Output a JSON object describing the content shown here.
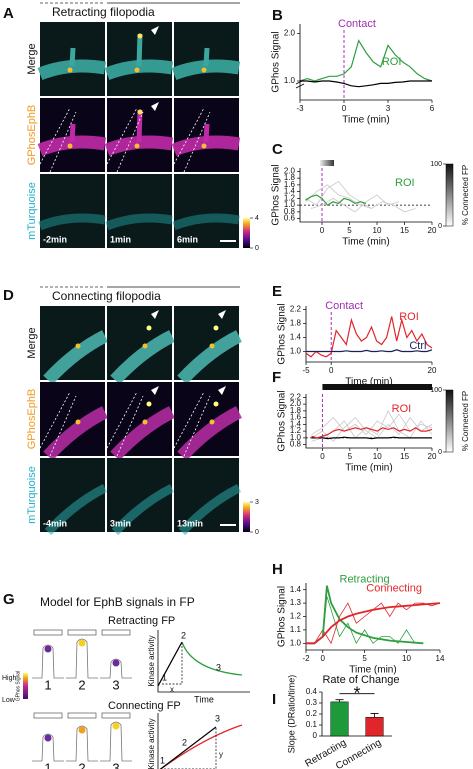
{
  "panel_labels": [
    "A",
    "B",
    "C",
    "D",
    "E",
    "F",
    "G",
    "H",
    "I"
  ],
  "image_panels": [
    {
      "title": "Retracting filopodia",
      "rows": [
        "Merge",
        "GPhosEphB",
        "mTurquoise"
      ],
      "times": [
        "-2min",
        "1min",
        "6min"
      ],
      "colorbar_ticks": [
        4,
        0
      ]
    },
    {
      "title": "Connecting filopodia",
      "rows": [
        "Merge",
        "GPhosEphB",
        "mTurquoise"
      ],
      "times": [
        "-4min",
        "3min",
        "13min"
      ],
      "colorbar_ticks": [
        3,
        0
      ]
    }
  ],
  "diagram": {
    "title": "Model for EphB signals in FP",
    "legend_high": "High",
    "legend_low": "Low",
    "legend_label": "GPhos Signal",
    "models": [
      {
        "title": "Retracting FP",
        "stages": [
          "1",
          "2",
          "3"
        ],
        "y_label": "Kinase activity",
        "x_label": "Time",
        "curve_labels": [
          "1",
          "2",
          "3"
        ],
        "marks": [
          "x"
        ]
      },
      {
        "title": "Connecting FP",
        "stages": [
          "1",
          "2",
          "3"
        ],
        "y_label": "Kinase activity",
        "x_label": "Time",
        "curve_labels": [
          "1",
          "2",
          "3"
        ],
        "marks": [
          "x",
          "y"
        ]
      }
    ]
  },
  "chart_data": [
    {
      "type": "line",
      "y_label": "GPhos Signal",
      "x_label": "Time (min)",
      "xlim": [
        -3,
        6
      ],
      "xticks": [
        -3,
        0,
        3,
        6
      ],
      "ylim": [
        0.6,
        2.2
      ],
      "yticks": [
        {
          "value": 1.0,
          "label": "1.0"
        },
        {
          "value": 2.0,
          "label": "2.0"
        }
      ],
      "axis_break": true,
      "annotations": [
        {
          "text": "Contact",
          "x": 0
        }
      ],
      "series": [
        {
          "name": "ROI",
          "color": "#2e9e3e",
          "x": [
            -3,
            -2.5,
            -2,
            -1.5,
            -1,
            -0.5,
            0,
            0.5,
            1,
            1.5,
            2,
            2.5,
            3,
            3.5,
            4,
            4.5,
            5,
            5.5,
            6
          ],
          "values": [
            1.0,
            1.05,
            1.0,
            1.05,
            1.1,
            1.1,
            1.15,
            1.3,
            1.85,
            1.6,
            1.4,
            1.3,
            1.75,
            1.55,
            1.4,
            1.3,
            1.15,
            1.05,
            1.0
          ]
        },
        {
          "color": "#000000",
          "x": [
            -3,
            -2.5,
            -2,
            -1.5,
            -1,
            -0.5,
            0,
            0.5,
            1,
            1.5,
            2,
            2.5,
            3,
            3.5,
            4,
            4.5,
            5,
            5.5,
            6
          ],
          "values": [
            1.0,
            1.0,
            0.98,
            1.0,
            1.0,
            0.98,
            0.95,
            0.9,
            0.88,
            0.9,
            0.92,
            0.95,
            0.95,
            0.97,
            0.98,
            1.0,
            1.0,
            1.0,
            1.0
          ]
        }
      ]
    },
    {
      "type": "line",
      "y_label": "GPhos Signal",
      "x_label": "Time (min)",
      "xlim": [
        -4,
        20
      ],
      "xticks": [
        0,
        5,
        10,
        15,
        20
      ],
      "ylim": [
        0.5,
        2.1
      ],
      "yticks": [
        0.6,
        0.8,
        {
          "value": 1.0,
          "label": "1.0"
        },
        1.2,
        1.4,
        1.6,
        1.8,
        {
          "value": 2.0,
          "label": "2.0"
        }
      ],
      "contact_x": 0,
      "reference_y": 1,
      "colorbar": {
        "label": "% Connected FP",
        "ticks": [
          0,
          100
        ]
      },
      "series": [
        {
          "color": "#c8c8c8",
          "x": [
            -3,
            -1,
            1,
            3,
            5,
            7,
            9,
            11,
            13,
            15,
            17
          ],
          "values": [
            1.1,
            1.4,
            1.6,
            1.3,
            1.2,
            1.0,
            0.9,
            1.1,
            1.0,
            0.8,
            0.9
          ]
        },
        {
          "color": "#c8c8c8",
          "x": [
            -3,
            -1,
            1,
            3,
            5,
            7,
            9
          ],
          "values": [
            1.2,
            1.0,
            1.5,
            1.7,
            1.3,
            1.1,
            0.9
          ]
        },
        {
          "color": "#c8c8c8",
          "x": [
            -2,
            0,
            2,
            4,
            6,
            8,
            10,
            12,
            14
          ],
          "values": [
            0.9,
            1.0,
            1.2,
            1.0,
            0.8,
            1.1,
            1.3,
            1.0,
            1.1
          ]
        },
        {
          "name": "ROI",
          "color": "#2e9e3e",
          "x": [
            -3,
            -2,
            -1,
            0,
            1,
            2,
            3,
            4,
            5,
            6,
            7,
            8
          ],
          "values": [
            1.15,
            1.25,
            1.3,
            1.2,
            1.0,
            1.1,
            1.05,
            1.2,
            1.15,
            1.05,
            1.1,
            1.05
          ]
        }
      ]
    },
    {
      "type": "line",
      "y_label": "GPhos Signal",
      "x_label": "Time (min)",
      "xlim": [
        -5,
        20
      ],
      "xticks": [
        -5,
        0,
        20
      ],
      "ylim": [
        0.7,
        2.3
      ],
      "yticks": [
        {
          "value": 1.0,
          "label": "1.0"
        },
        1.4,
        1.8,
        2.2
      ],
      "annotations": [
        {
          "text": "Contact",
          "x": 0
        }
      ],
      "series": [
        {
          "name": "ROI",
          "color": "#e2262b",
          "x": [
            -5,
            -4,
            -3,
            -2,
            -1,
            0,
            1,
            2,
            3,
            4,
            5,
            6,
            7,
            8,
            9,
            10,
            11,
            12,
            13,
            14,
            15,
            16,
            17,
            18,
            19,
            20
          ],
          "values": [
            0.95,
            0.85,
            1.0,
            0.9,
            0.85,
            0.95,
            1.6,
            1.4,
            1.2,
            1.9,
            1.5,
            1.3,
            1.4,
            1.7,
            1.3,
            1.2,
            1.4,
            2.0,
            1.3,
            1.9,
            1.4,
            1.6,
            1.3,
            1.5,
            1.2,
            1.1
          ]
        },
        {
          "name": "Ctrl",
          "color": "#1a1f5c",
          "x": [
            -5,
            -4,
            -3,
            -2,
            -1,
            0,
            1,
            2,
            3,
            4,
            5,
            6,
            7,
            8,
            9,
            10,
            11,
            12,
            13,
            14,
            15,
            16,
            17,
            18,
            19,
            20
          ],
          "values": [
            1.0,
            1.0,
            1.0,
            1.0,
            1.0,
            1.0,
            1.0,
            1.0,
            1.02,
            1.0,
            1.0,
            1.0,
            1.03,
            1.0,
            1.0,
            1.02,
            1.0,
            1.0,
            1.05,
            1.0,
            1.0,
            1.0,
            1.02,
            1.0,
            1.0,
            1.05
          ]
        }
      ]
    },
    {
      "type": "line",
      "y_label": "GPhos Signal",
      "x_label": "Time (min)",
      "xlim": [
        -3,
        20
      ],
      "xticks": [
        0,
        5,
        10,
        15,
        20
      ],
      "ylim": [
        0.7,
        2.3
      ],
      "yticks": [
        0.8,
        {
          "value": 1.0,
          "label": "1.0"
        },
        1.2,
        1.4,
        1.6,
        1.8,
        {
          "value": 2.0,
          "label": "2.0"
        },
        2.2
      ],
      "contact_x": 0,
      "reference_y": 1,
      "colorbar": {
        "label": "% Connected FP",
        "ticks": [
          0,
          100
        ]
      },
      "series": [
        {
          "color": "#c8c8c8",
          "x": [
            -2,
            0,
            2,
            4,
            6,
            8,
            10,
            12,
            14,
            16,
            18,
            20
          ],
          "values": [
            1.1,
            1.3,
            1.6,
            1.2,
            1.4,
            1.1,
            1.5,
            1.3,
            1.7,
            1.2,
            1.4,
            1.3
          ]
        },
        {
          "color": "#c8c8c8",
          "x": [
            -2,
            0,
            2,
            4,
            6,
            8,
            10,
            12,
            14,
            16,
            18,
            20
          ],
          "values": [
            0.9,
            1.0,
            1.2,
            1.5,
            1.0,
            1.3,
            1.1,
            1.8,
            1.2,
            1.0,
            1.5,
            1.1
          ]
        },
        {
          "color": "#c8c8c8",
          "x": [
            -2,
            0,
            2,
            4,
            6,
            8,
            10,
            12,
            14,
            16,
            18,
            20
          ],
          "values": [
            1.0,
            1.2,
            0.9,
            1.3,
            1.6,
            1.2,
            1.0,
            1.4,
            1.1,
            1.6,
            1.2,
            1.4
          ]
        },
        {
          "color": "#000000",
          "x": [
            -2,
            -1,
            0,
            1,
            2,
            3,
            4,
            5,
            6,
            7,
            8,
            9,
            10,
            11,
            12,
            13,
            14,
            15,
            16,
            17,
            18,
            19,
            20
          ],
          "values": [
            1.0,
            1.0,
            1.0,
            0.98,
            1.0,
            1.0,
            1.02,
            1.0,
            1.0,
            1.0,
            1.0,
            0.98,
            1.0,
            1.0,
            1.0,
            1.02,
            1.0,
            1.0,
            1.0,
            1.0,
            1.0,
            1.0,
            1.0
          ]
        },
        {
          "name": "ROI",
          "color": "#e2262b",
          "x": [
            -2,
            -1,
            0,
            1,
            2,
            3,
            4,
            5,
            6,
            7,
            8,
            9,
            10,
            11,
            12,
            13,
            14,
            15,
            16,
            17,
            18,
            19,
            20
          ],
          "values": [
            1.05,
            1.0,
            1.05,
            1.1,
            1.2,
            1.25,
            1.2,
            1.25,
            1.3,
            1.25,
            1.3,
            1.25,
            1.2,
            1.3,
            1.25,
            1.3,
            1.2,
            1.25,
            1.2,
            1.3,
            1.2,
            1.2,
            1.25
          ]
        }
      ]
    },
    {
      "type": "line",
      "y_label": "GPhos Signal",
      "x_label": "Time (min)",
      "xlim": [
        -2,
        14
      ],
      "xticks": [
        -2,
        0,
        5,
        10,
        14
      ],
      "ylim": [
        0.95,
        1.45
      ],
      "yticks": [
        {
          "value": 1.0,
          "label": "1.0"
        },
        1.1,
        1.2,
        1.3,
        1.4
      ],
      "series": [
        {
          "color": "#2e9e3e",
          "style": "thin",
          "x": [
            -2,
            -1,
            0,
            0.5,
            1,
            2,
            3,
            4,
            5,
            6,
            7,
            8,
            9,
            10,
            11
          ],
          "values": [
            1.0,
            1.0,
            1.05,
            1.35,
            1.25,
            1.05,
            1.15,
            1.0,
            1.1,
            1.0,
            1.05,
            1.05,
            1.0,
            1.1,
            1.0
          ]
        },
        {
          "color": "#e2262b",
          "style": "thin",
          "x": [
            -2,
            -1,
            0,
            1,
            2,
            3,
            4,
            5,
            6,
            7,
            8,
            9,
            10,
            11,
            12,
            13,
            14
          ],
          "values": [
            1.0,
            1.0,
            1.1,
            1.0,
            1.2,
            1.3,
            1.15,
            1.2,
            1.25,
            1.3,
            1.2,
            1.3,
            1.25,
            1.3,
            1.3,
            1.28,
            1.3
          ]
        },
        {
          "name": "Retracting",
          "color": "#2e9e3e",
          "style": "fit",
          "x": [
            -2,
            -1,
            0,
            0.5,
            1,
            2,
            3,
            4,
            6,
            8,
            10,
            12
          ],
          "values": [
            1.0,
            1.0,
            1.05,
            1.43,
            1.3,
            1.18,
            1.12,
            1.08,
            1.04,
            1.02,
            1.01,
            1.0
          ]
        },
        {
          "name": "Connecting",
          "color": "#e2262b",
          "style": "fit",
          "x": [
            -2,
            -1,
            0,
            1,
            2,
            3,
            4,
            6,
            8,
            10,
            12,
            14
          ],
          "values": [
            1.0,
            1.0,
            1.05,
            1.12,
            1.17,
            1.2,
            1.22,
            1.25,
            1.27,
            1.28,
            1.29,
            1.3
          ]
        }
      ]
    },
    {
      "type": "bar",
      "title": "Rate of Change",
      "y_label": "Slope (DRatio/time)",
      "categories": [
        "Retracting",
        "Connecting"
      ],
      "values": [
        0.31,
        0.17
      ],
      "errors": [
        0.02,
        0.035
      ],
      "colors": [
        "#1e9a3a",
        "#e0262b"
      ],
      "ylim": [
        0,
        0.4
      ],
      "yticks": [
        0,
        0.1,
        0.2,
        0.3,
        0.4
      ],
      "significance": "*"
    }
  ]
}
